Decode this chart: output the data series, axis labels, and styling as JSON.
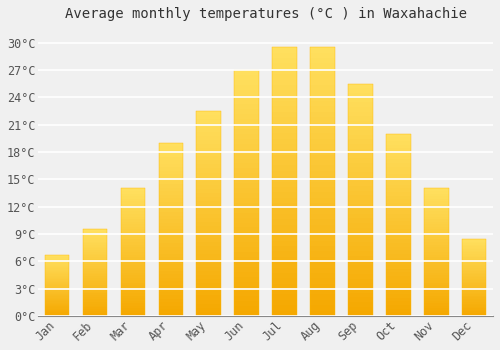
{
  "title": "Average monthly temperatures (°C ) in Waxahachie",
  "months": [
    "Jan",
    "Feb",
    "Mar",
    "Apr",
    "May",
    "Jun",
    "Jul",
    "Aug",
    "Sep",
    "Oct",
    "Nov",
    "Dec"
  ],
  "values": [
    6.7,
    9.5,
    14.0,
    19.0,
    22.5,
    27.0,
    29.5,
    29.5,
    25.5,
    20.0,
    14.0,
    8.5
  ],
  "bar_color_bottom": "#F5A800",
  "bar_color_top": "#FFE060",
  "background_color": "#f0f0f0",
  "grid_color": "#ffffff",
  "yticks": [
    0,
    3,
    6,
    9,
    12,
    15,
    18,
    21,
    24,
    27,
    30
  ],
  "ylim": [
    0,
    31.5
  ],
  "title_fontsize": 10,
  "tick_fontsize": 8.5
}
